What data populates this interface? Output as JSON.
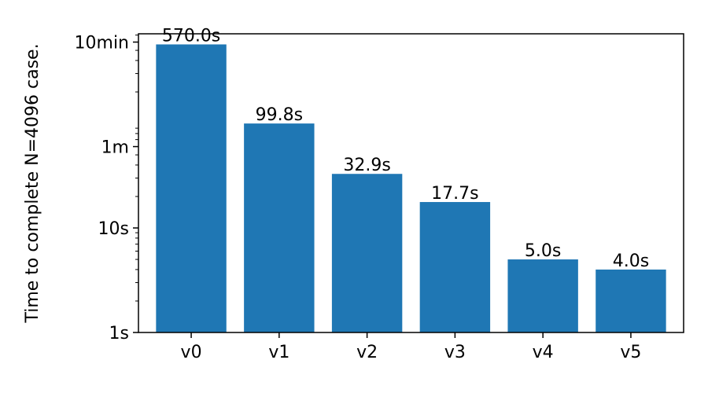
{
  "chart_data": {
    "type": "bar",
    "title": "",
    "xlabel": "",
    "ylabel": "Time to complete N=4096 case.",
    "categories": [
      "v0",
      "v1",
      "v2",
      "v3",
      "v4",
      "v5"
    ],
    "values": [
      570.0,
      99.8,
      32.9,
      17.7,
      5.0,
      4.0
    ],
    "data_labels": [
      "570.0s",
      "99.8s",
      "32.9s",
      "17.7s",
      "5.0s",
      "4.0s"
    ],
    "yscale": "log",
    "ylim": [
      1,
      720
    ],
    "yticks": [
      {
        "value": 1,
        "label": "1s"
      },
      {
        "value": 10,
        "label": "10s"
      },
      {
        "value": 60,
        "label": "1m"
      },
      {
        "value": 600,
        "label": "10min"
      }
    ],
    "grid": false,
    "bar_color": "#1f77b4"
  }
}
